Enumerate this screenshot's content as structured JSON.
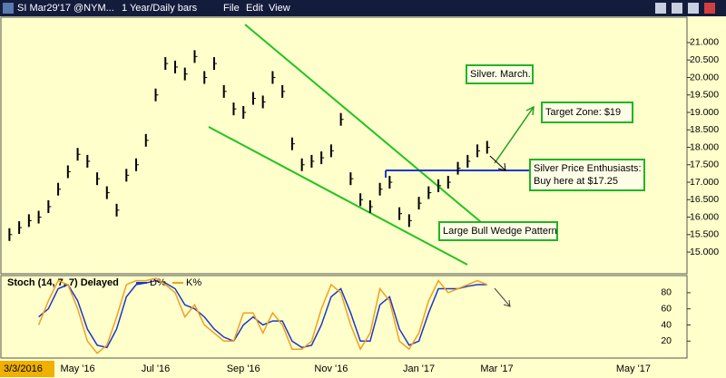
{
  "toolbar": {
    "symbol": "SI Mar29'17 @NYM...",
    "period": "1 Year/Daily bars",
    "menu": [
      "File",
      "Edit",
      "View"
    ]
  },
  "chart_data": [
    {
      "type": "bar",
      "color": "#000000",
      "annotations": [
        "Silver. March.",
        "Target Zone: $19",
        "Silver Price Enthusiasts:",
        "Buy here at $17.25",
        "Large Bull Wedge Pattern"
      ],
      "categories": [
        "3/3/2016",
        null,
        null,
        null,
        null,
        null,
        null,
        "May '16",
        null,
        null,
        null,
        null,
        null,
        null,
        null,
        "Jul '16",
        null,
        null,
        null,
        null,
        null,
        null,
        null,
        null,
        "Sep '16",
        null,
        null,
        null,
        null,
        null,
        null,
        null,
        null,
        "Nov '16",
        null,
        null,
        null,
        null,
        null,
        null,
        null,
        null,
        "Jan '17",
        null,
        null,
        null,
        null,
        null,
        null,
        null,
        "Mar '17",
        null,
        null,
        null,
        null,
        null,
        null,
        null,
        null,
        null,
        null,
        null,
        null,
        null,
        "May '17",
        null,
        null,
        null,
        null,
        null
      ],
      "values": [
        15.5,
        15.7,
        15.9,
        16.0,
        16.3,
        16.8,
        17.3,
        17.8,
        17.6,
        17.1,
        16.7,
        16.2,
        17.2,
        17.5,
        18.2,
        19.5,
        20.4,
        20.3,
        20.1,
        20.6,
        20.0,
        20.4,
        19.6,
        19.1,
        19.0,
        19.4,
        19.3,
        20.0,
        19.6,
        18.1,
        17.5,
        17.6,
        17.7,
        17.9,
        18.8,
        17.1,
        16.5,
        16.3,
        16.8,
        17.0,
        16.1,
        15.9,
        16.4,
        16.7,
        16.9,
        17.0,
        17.4,
        17.6,
        17.9,
        18.0,
        null,
        null,
        null,
        null,
        null,
        null,
        null,
        null,
        null,
        null,
        null,
        null,
        null,
        null,
        null,
        null,
        null,
        null,
        null,
        null
      ],
      "ylim": [
        14.43,
        21.7
      ],
      "yticks": [
        {
          "value": 15,
          "label": "15.000"
        },
        {
          "value": 15.5,
          "label": "15.500"
        },
        {
          "value": 16,
          "label": "16.000"
        },
        {
          "value": 16.5,
          "label": "16.500"
        },
        {
          "value": 17,
          "label": "17.000"
        },
        {
          "value": 17.5,
          "label": "17.500"
        },
        {
          "value": 18,
          "label": "18.000"
        },
        {
          "value": 18.5,
          "label": "18.500"
        },
        {
          "value": 19,
          "label": "19.000"
        },
        {
          "value": 19.5,
          "label": "19.500"
        },
        {
          "value": 20,
          "label": "20.000"
        },
        {
          "value": 20.5,
          "label": "20.500"
        },
        {
          "value": 21,
          "label": "21.000"
        }
      ],
      "grid": false
    },
    {
      "type": "line",
      "title": "Stoch (14, 7, 7) Delayed",
      "series": [
        {
          "name": "D%",
          "color": "#1c38c8",
          "values": [
            null,
            null,
            null,
            50,
            60,
            85,
            90,
            70,
            35,
            15,
            12,
            35,
            75,
            90,
            92,
            95,
            92,
            85,
            65,
            60,
            50,
            35,
            25,
            20,
            40,
            50,
            40,
            45,
            45,
            20,
            12,
            15,
            40,
            75,
            85,
            55,
            20,
            20,
            65,
            75,
            35,
            15,
            20,
            55,
            85,
            85,
            85,
            88,
            90,
            90,
            null,
            null,
            null,
            null,
            null,
            null,
            null,
            null,
            null,
            null,
            null,
            null,
            null,
            null,
            null,
            null,
            null,
            null,
            null,
            null
          ]
        },
        {
          "name": "K%",
          "color": "#f0a020",
          "values": [
            null,
            null,
            null,
            40,
            70,
            95,
            90,
            60,
            20,
            5,
            15,
            50,
            90,
            95,
            95,
            98,
            90,
            80,
            50,
            65,
            40,
            30,
            20,
            20,
            55,
            55,
            30,
            55,
            40,
            10,
            10,
            20,
            60,
            90,
            80,
            40,
            10,
            30,
            85,
            70,
            20,
            10,
            30,
            70,
            95,
            80,
            85,
            90,
            95,
            90,
            null,
            null,
            null,
            null,
            null,
            null,
            null,
            null,
            null,
            null,
            null,
            null,
            null,
            null,
            null,
            null,
            null,
            null,
            null,
            null
          ]
        }
      ],
      "ylim": [
        -1,
        99
      ],
      "yticks": [
        20,
        40,
        60,
        80
      ],
      "grid": false
    }
  ]
}
